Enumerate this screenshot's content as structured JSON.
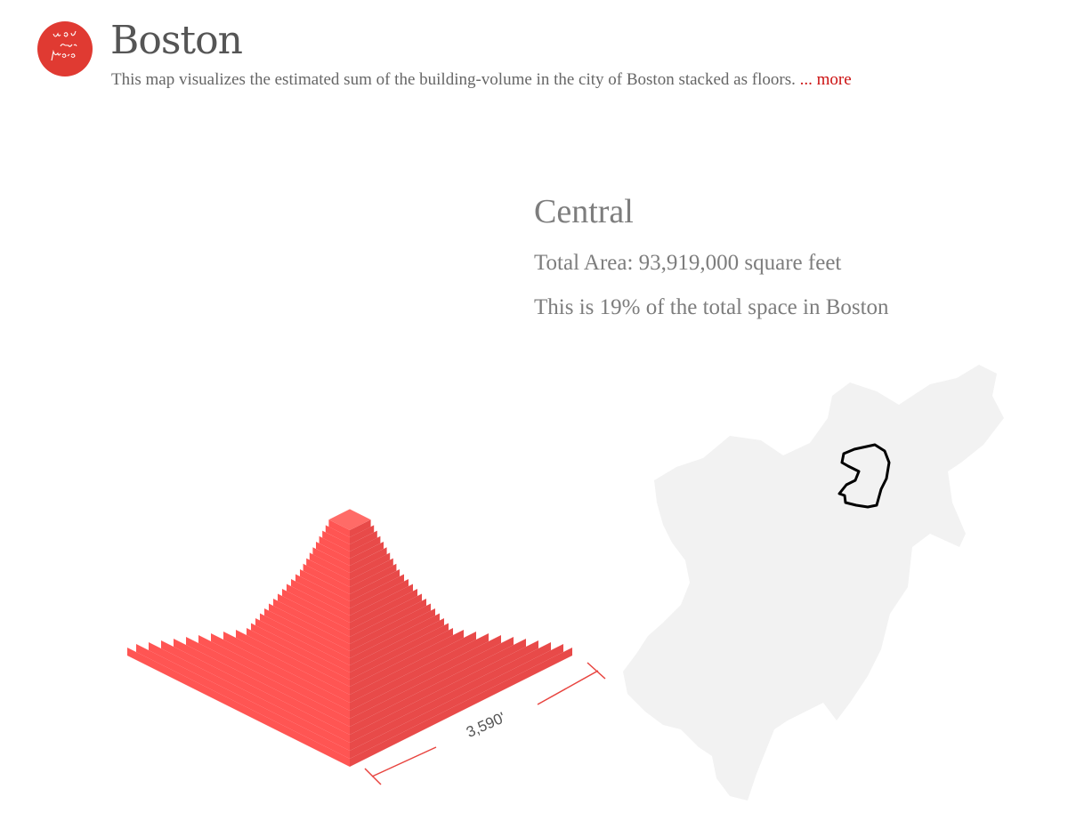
{
  "header": {
    "logo_text": "you are here",
    "title": "Boston",
    "description": "This map visualizes the estimated sum of the building-volume in the city of Boston stacked as floors.",
    "more_label": "... more"
  },
  "district": {
    "name": "Central",
    "total_area_text": "Total Area: 93,919,000 square feet",
    "share_text": "This is 19% of the total space in Boston"
  },
  "volume_chart": {
    "side_label": "3,590'"
  },
  "colors": {
    "brand": "#e03a32",
    "link": "#cc1111",
    "block_top": "#ff6b67",
    "block_left": "#ff5553",
    "block_right": "#e84a49",
    "map_fill": "#f2f2f2",
    "district_outline": "#000000"
  }
}
